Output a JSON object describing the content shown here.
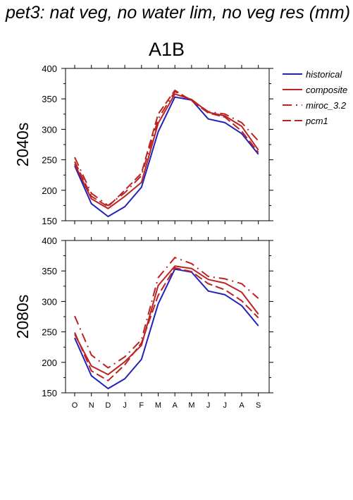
{
  "title": "pet3: nat veg, no water lim, no veg res (mm)",
  "subtitle": "A1B",
  "colors": {
    "historical": "#2222bb",
    "scenario": "#bb2222"
  },
  "legend": [
    {
      "name": "historical",
      "color": "#2222bb",
      "dash": "solid"
    },
    {
      "name": "composite",
      "color": "#bb2222",
      "dash": "solid"
    },
    {
      "name": "miroc_3.2",
      "color": "#bb2222",
      "dash": "dashdot"
    },
    {
      "name": "pcm1",
      "color": "#bb2222",
      "dash": "dash"
    }
  ],
  "chart_data": [
    {
      "type": "line",
      "panel": "2040s",
      "ylabel": "2040s",
      "categories": [
        "O",
        "N",
        "D",
        "J",
        "F",
        "M",
        "A",
        "M",
        "J",
        "J",
        "A",
        "S"
      ],
      "ylim": [
        150,
        400
      ],
      "yticks": [
        150,
        200,
        250,
        300,
        350,
        400
      ],
      "series": [
        {
          "name": "historical",
          "values": [
            240,
            178,
            157,
            173,
            205,
            296,
            353,
            348,
            317,
            311,
            293,
            259
          ]
        },
        {
          "name": "composite",
          "values": [
            243,
            186,
            170,
            190,
            213,
            310,
            358,
            349,
            328,
            322,
            305,
            266
          ]
        },
        {
          "name": "miroc_3.2",
          "values": [
            254,
            195,
            175,
            196,
            224,
            317,
            362,
            348,
            329,
            325,
            311,
            281
          ]
        },
        {
          "name": "pcm1",
          "values": [
            247,
            190,
            173,
            200,
            228,
            325,
            364,
            347,
            327,
            320,
            297,
            262
          ]
        }
      ]
    },
    {
      "type": "line",
      "panel": "2080s",
      "ylabel": "2080s",
      "categories": [
        "O",
        "N",
        "D",
        "J",
        "F",
        "M",
        "A",
        "M",
        "J",
        "J",
        "A",
        "S"
      ],
      "ylim": [
        150,
        400
      ],
      "yticks": [
        150,
        200,
        250,
        300,
        350,
        400
      ],
      "series": [
        {
          "name": "historical",
          "values": [
            240,
            178,
            157,
            173,
            205,
            296,
            353,
            348,
            317,
            311,
            293,
            260
          ]
        },
        {
          "name": "composite",
          "values": [
            246,
            194,
            180,
            201,
            228,
            326,
            358,
            354,
            336,
            330,
            315,
            279
          ]
        },
        {
          "name": "miroc_3.2",
          "values": [
            276,
            212,
            191,
            209,
            237,
            339,
            372,
            362,
            341,
            337,
            329,
            305
          ]
        },
        {
          "name": "pcm1",
          "values": [
            249,
            186,
            170,
            196,
            232,
            310,
            355,
            349,
            329,
            319,
            301,
            273
          ]
        }
      ]
    }
  ]
}
